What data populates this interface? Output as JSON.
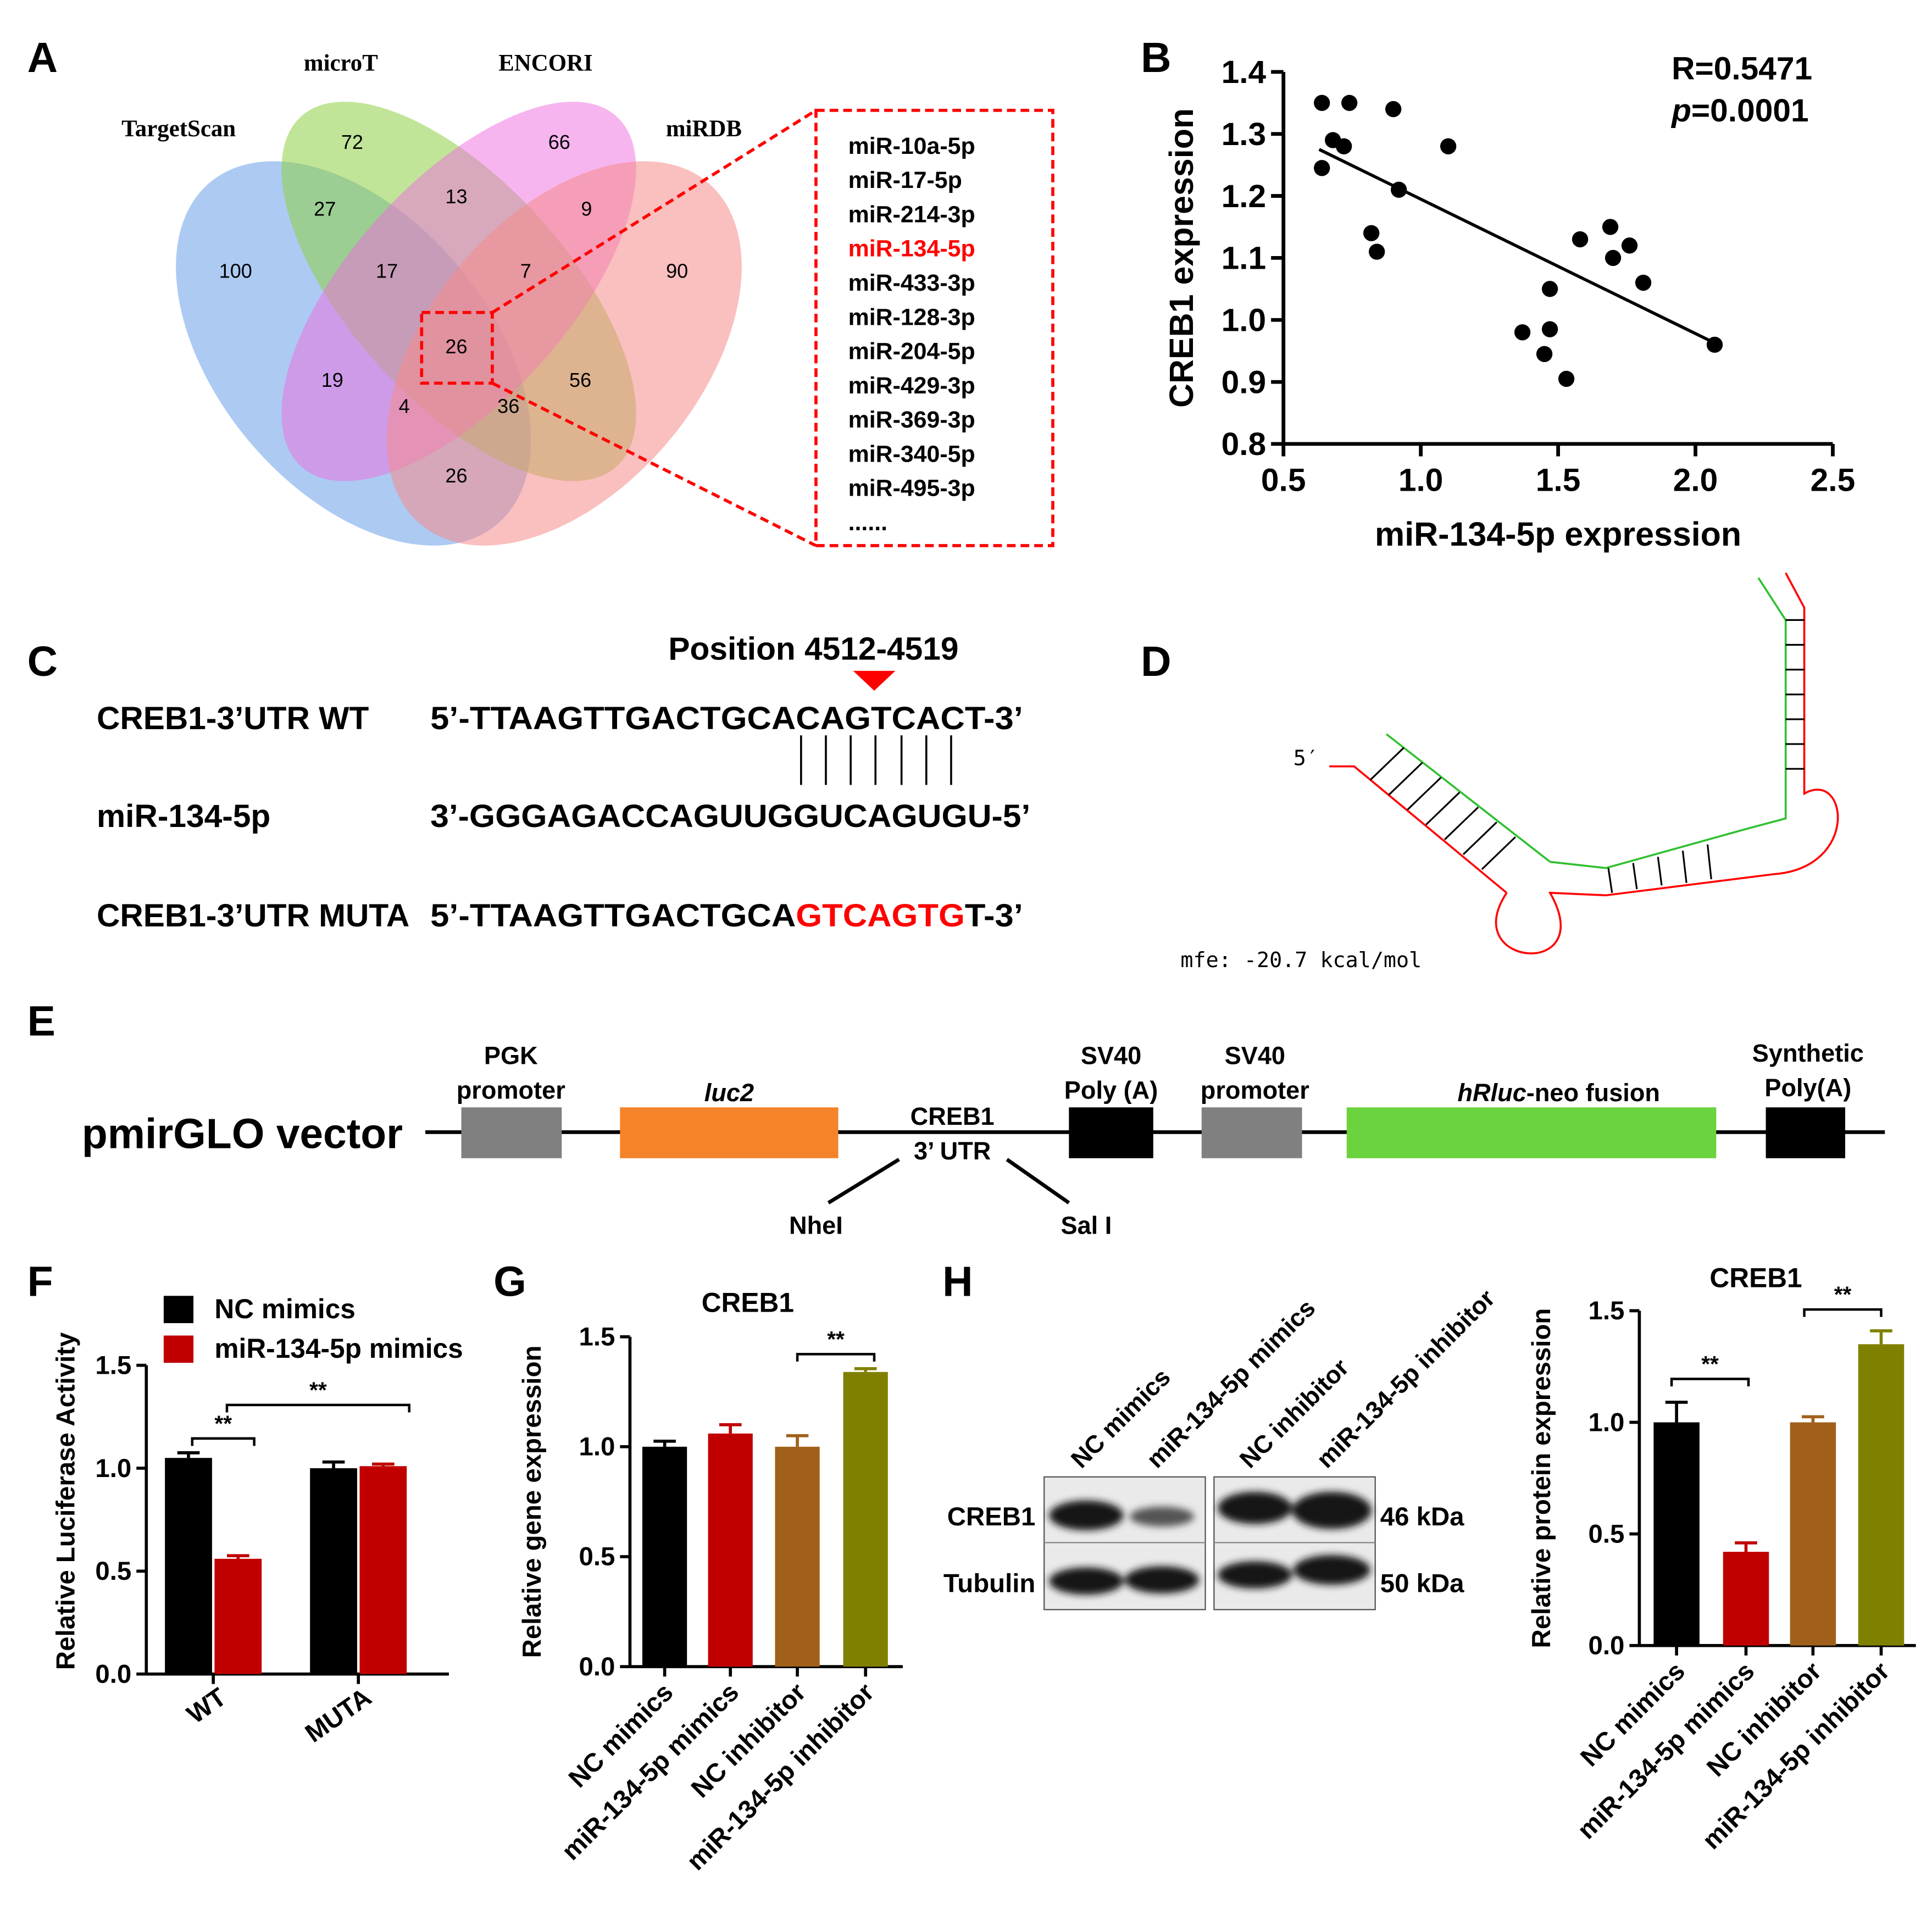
{
  "colors": {
    "black": "#000000",
    "red": "#c00000",
    "brown": "#a0601a",
    "olive": "#808000",
    "seqRed": "#ff0000"
  },
  "panel_labels": {
    "A": "A",
    "B": "B",
    "C": "C",
    "D": "D",
    "E": "E",
    "F": "F",
    "G": "G",
    "H": "H"
  },
  "panelA": {
    "databases": [
      "TargetScan",
      "microT",
      "ENCORI",
      "miRDB"
    ],
    "counts": [
      "72",
      "66",
      "100",
      "90",
      "27",
      "13",
      "9",
      "17",
      "7",
      "26",
      "19",
      "56",
      "4",
      "36",
      "26"
    ],
    "mirna_list": [
      "miR-10a-5p",
      "miR-17-5p",
      "miR-214-3p",
      "miR-134-5p",
      "miR-433-3p",
      "miR-128-3p",
      "miR-204-5p",
      "miR-429-3p",
      "miR-369-3p",
      "miR-340-5p",
      "miR-495-3p",
      "......"
    ],
    "highlight": "miR-134-5p"
  },
  "panelB": {
    "stat_r": "R=0.5471",
    "stat_p_label": "p",
    "stat_p_value": "=0.0001",
    "chart_data": {
      "type": "scatter",
      "xlabel": "miR-134-5p expression",
      "ylabel": "CREB1 expression",
      "xlim": [
        0.5,
        2.5
      ],
      "ylim": [
        0.8,
        1.4
      ],
      "xticks": [
        "0.5",
        "1.0",
        "1.5",
        "2.0",
        "2.5"
      ],
      "yticks": [
        "0.8",
        "0.9",
        "1.0",
        "1.1",
        "1.2",
        "1.3",
        "1.4"
      ],
      "points": [
        [
          0.64,
          1.35
        ],
        [
          0.74,
          1.35
        ],
        [
          0.9,
          1.34
        ],
        [
          0.68,
          1.29
        ],
        [
          0.72,
          1.28
        ],
        [
          1.1,
          1.28
        ],
        [
          0.64,
          1.245
        ],
        [
          0.92,
          1.21
        ],
        [
          0.82,
          1.14
        ],
        [
          0.84,
          1.11
        ],
        [
          1.58,
          1.13
        ],
        [
          1.69,
          1.15
        ],
        [
          1.76,
          1.12
        ],
        [
          1.7,
          1.1
        ],
        [
          1.81,
          1.06
        ],
        [
          1.47,
          1.05
        ],
        [
          1.37,
          0.98
        ],
        [
          1.47,
          0.985
        ],
        [
          2.07,
          0.96
        ],
        [
          1.45,
          0.945
        ],
        [
          1.53,
          0.905
        ]
      ],
      "fit_line": [
        [
          0.63,
          1.275
        ],
        [
          2.06,
          0.965
        ]
      ]
    }
  },
  "panelC": {
    "position": "Position 4512-4519",
    "labels": [
      "CREB1-3’UTR WT",
      "miR-134-5p",
      "CREB1-3’UTR MUTA"
    ],
    "wt_seq": "5’-TTAAGTTGACTGCACAGTCACT-3’",
    "mir_seq": "3’-GGGAGACCAGUUGGUCAGUGU-5’",
    "muta_prefix": "5’-TTAAGTTGACTGCA",
    "muta_mut": "GTCAGTG",
    "muta_suffix": "T-3’"
  },
  "panelD": {
    "five_prime": "5′",
    "mfe": "mfe: -20.7 kcal/mol"
  },
  "panelE": {
    "vector": "pmirGLO vector",
    "pgk_1": "PGK",
    "pgk_2": "promoter",
    "luc2": "luc2",
    "creb_1": "CREB1",
    "creb_2": "3’ UTR",
    "sv40a_1": "SV40",
    "sv40a_2": "Poly (A)",
    "sv40p_1": "SV40",
    "sv40p_2": "promoter",
    "hrluc_italic": "hRluc",
    "hrluc_rest": "-neo fusion",
    "syn_1": "Synthetic",
    "syn_2": "Poly(A)",
    "nhel": "NheI",
    "sali": "Sal Ι"
  },
  "panelF": {
    "legend": [
      "NC mimics",
      "miR-134-5p mimics"
    ],
    "sig": [
      "**",
      "**"
    ],
    "chart_data": {
      "type": "bar",
      "ylabel": "Relative Luciferase Activity",
      "categories": [
        "WT",
        "MUTA"
      ],
      "series": [
        {
          "name": "NC mimics",
          "values": [
            1.05,
            1.0
          ],
          "errors": [
            0.025,
            0.03
          ]
        },
        {
          "name": "miR-134-5p mimics",
          "values": [
            0.56,
            1.01
          ],
          "errors": [
            0.015,
            0.01
          ]
        }
      ],
      "ylim": [
        0,
        1.5
      ],
      "yticks": [
        "0.0",
        "0.5",
        "1.0",
        "1.5"
      ]
    }
  },
  "panelG": {
    "sig": [
      "**"
    ],
    "chart_data": {
      "type": "bar",
      "title": "CREB1",
      "ylabel": "Relative gene expression",
      "categories": [
        "NC mimics",
        "miR-134-5p mimics",
        "NC inhibitor",
        "miR-134-5p inhibitor"
      ],
      "values": [
        1.0,
        1.06,
        1.0,
        1.34
      ],
      "errors": [
        0.025,
        0.04,
        0.05,
        0.015
      ],
      "ylim": [
        0,
        1.5
      ],
      "yticks": [
        "0.0",
        "0.5",
        "1.0",
        "1.5"
      ]
    }
  },
  "panelH": {
    "lanes": [
      "NC mimics",
      "miR-134-5p mimics",
      "NC inhibitor",
      "miR-134-5p inhibitor"
    ],
    "rows": [
      "CREB1",
      "Tubulin"
    ],
    "kda": [
      "46 kDa",
      "50 kDa"
    ],
    "sig": [
      "**",
      "**"
    ],
    "chart_data": {
      "type": "bar",
      "title": "CREB1",
      "ylabel": "Relative protein expression",
      "categories": [
        "NC mimics",
        "miR-134-5p mimics",
        "NC inhibitor",
        "miR-134-5p inhibitor"
      ],
      "values": [
        1.0,
        0.42,
        1.0,
        1.35
      ],
      "errors": [
        0.09,
        0.04,
        0.025,
        0.06
      ],
      "ylim": [
        0,
        1.5
      ],
      "yticks": [
        "0.0",
        "0.5",
        "1.0",
        "1.5"
      ]
    }
  }
}
